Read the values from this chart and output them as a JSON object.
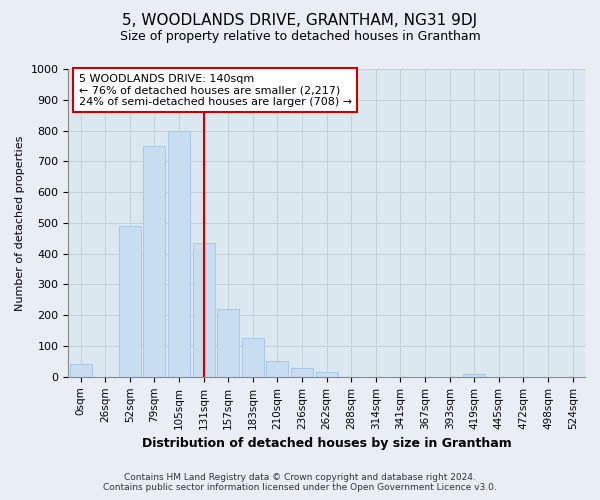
{
  "title": "5, WOODLANDS DRIVE, GRANTHAM, NG31 9DJ",
  "subtitle": "Size of property relative to detached houses in Grantham",
  "xlabel": "Distribution of detached houses by size in Grantham",
  "ylabel": "Number of detached properties",
  "categories": [
    "0sqm",
    "26sqm",
    "52sqm",
    "79sqm",
    "105sqm",
    "131sqm",
    "157sqm",
    "183sqm",
    "210sqm",
    "236sqm",
    "262sqm",
    "288sqm",
    "314sqm",
    "341sqm",
    "367sqm",
    "393sqm",
    "419sqm",
    "445sqm",
    "472sqm",
    "498sqm",
    "524sqm"
  ],
  "values": [
    42,
    0,
    490,
    750,
    800,
    435,
    220,
    125,
    50,
    30,
    15,
    0,
    0,
    0,
    0,
    0,
    8,
    0,
    0,
    0,
    0
  ],
  "bar_color": "#c9ddf0",
  "bar_edge_color": "#a8c8e8",
  "vline_x": 5,
  "vline_color": "#cc0000",
  "annotation_box_text": "5 WOODLANDS DRIVE: 140sqm\n← 76% of detached houses are smaller (2,217)\n24% of semi-detached houses are larger (708) →",
  "annotation_box_facecolor": "#ffffff",
  "annotation_box_edgecolor": "#cc0000",
  "ylim": [
    0,
    1000
  ],
  "yticks": [
    0,
    100,
    200,
    300,
    400,
    500,
    600,
    700,
    800,
    900,
    1000
  ],
  "footer_line1": "Contains HM Land Registry data © Crown copyright and database right 2024.",
  "footer_line2": "Contains public sector information licensed under the Open Government Licence v3.0.",
  "background_color": "#e8eef4",
  "plot_background_color": "#dce8f0",
  "grid_color": "#c0cfd8"
}
